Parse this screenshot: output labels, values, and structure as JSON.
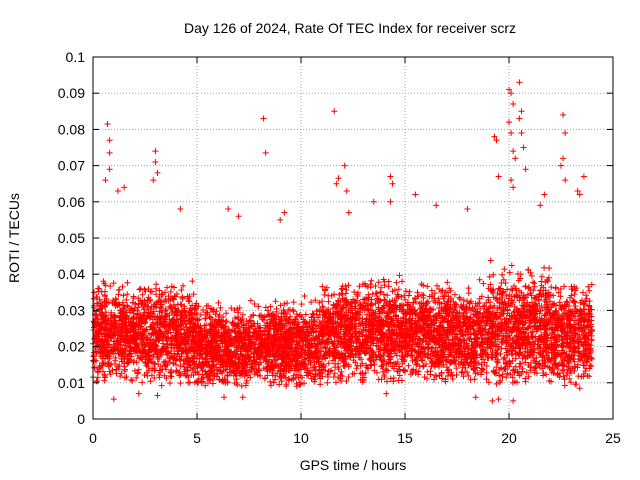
{
  "chart_data": {
    "type": "scatter",
    "title": "Day 126 of 2024, Rate Of TEC Index for receiver scrz",
    "xlabel": "GPS time / hours",
    "ylabel": "ROTI / TECUs",
    "xlim": [
      0,
      25
    ],
    "ylim": [
      0,
      0.1
    ],
    "xticks": [
      0,
      5,
      10,
      15,
      20,
      25
    ],
    "xtick_labels": [
      "0",
      "5",
      "10",
      "15",
      "20",
      "25"
    ],
    "yticks": [
      0,
      0.01,
      0.02,
      0.03,
      0.04,
      0.05,
      0.06,
      0.07,
      0.08,
      0.09,
      0.1
    ],
    "ytick_labels": [
      "0",
      "0.01",
      "0.02",
      "0.03",
      "0.04",
      "0.05",
      "0.06",
      "0.07",
      "0.08",
      "0.09",
      "0.1"
    ],
    "grid": true,
    "marker": "+",
    "marker_color": "#ff0000",
    "series": [
      {
        "name": "ROTI",
        "points": [
          [
            0.7,
            0.0815
          ],
          [
            0.8,
            0.077
          ],
          [
            0.8,
            0.0735
          ],
          [
            0.8,
            0.069
          ],
          [
            0.6,
            0.066
          ],
          [
            1.5,
            0.064
          ],
          [
            1.2,
            0.063
          ],
          [
            3.0,
            0.074
          ],
          [
            3.0,
            0.071
          ],
          [
            3.1,
            0.068
          ],
          [
            2.9,
            0.066
          ],
          [
            4.2,
            0.058
          ],
          [
            6.5,
            0.058
          ],
          [
            7.0,
            0.056
          ],
          [
            8.2,
            0.083
          ],
          [
            8.3,
            0.0735
          ],
          [
            9.2,
            0.057
          ],
          [
            9.0,
            0.055
          ],
          [
            11.6,
            0.085
          ],
          [
            12.1,
            0.07
          ],
          [
            11.8,
            0.0665
          ],
          [
            11.7,
            0.065
          ],
          [
            12.3,
            0.057
          ],
          [
            12.2,
            0.063
          ],
          [
            13.5,
            0.06
          ],
          [
            14.3,
            0.067
          ],
          [
            14.4,
            0.065
          ],
          [
            14.3,
            0.06
          ],
          [
            15.5,
            0.062
          ],
          [
            16.5,
            0.059
          ],
          [
            18.0,
            0.058
          ],
          [
            19.3,
            0.078
          ],
          [
            19.4,
            0.077
          ],
          [
            19.5,
            0.067
          ],
          [
            20.0,
            0.091
          ],
          [
            20.1,
            0.09
          ],
          [
            20.2,
            0.087
          ],
          [
            20.0,
            0.082
          ],
          [
            20.1,
            0.079
          ],
          [
            20.2,
            0.074
          ],
          [
            20.3,
            0.072
          ],
          [
            20.5,
            0.093
          ],
          [
            20.6,
            0.085
          ],
          [
            20.5,
            0.083
          ],
          [
            20.6,
            0.079
          ],
          [
            20.7,
            0.075
          ],
          [
            20.8,
            0.069
          ],
          [
            20.1,
            0.066
          ],
          [
            20.2,
            0.064
          ],
          [
            22.6,
            0.084
          ],
          [
            22.7,
            0.079
          ],
          [
            22.6,
            0.072
          ],
          [
            22.5,
            0.07
          ],
          [
            22.7,
            0.066
          ],
          [
            23.3,
            0.063
          ],
          [
            23.4,
            0.062
          ],
          [
            23.6,
            0.067
          ],
          [
            21.7,
            0.062
          ],
          [
            21.5,
            0.059
          ],
          [
            1.0,
            0.0055
          ],
          [
            2.2,
            0.007
          ],
          [
            3.1,
            0.0065
          ],
          [
            6.3,
            0.006
          ],
          [
            7.2,
            0.006
          ],
          [
            14.1,
            0.007
          ],
          [
            19.2,
            0.005
          ],
          [
            19.5,
            0.0055
          ],
          [
            20.2,
            0.005
          ],
          [
            18.4,
            0.006
          ],
          [
            23.4,
            0.0085
          ]
        ]
      }
    ],
    "density_bands": [
      {
        "x_start": 0,
        "x_end": 2,
        "y_low": 0.01,
        "y_high": 0.045
      },
      {
        "x_start": 2,
        "x_end": 5,
        "y_low": 0.009,
        "y_high": 0.045
      },
      {
        "x_start": 5,
        "x_end": 8,
        "y_low": 0.009,
        "y_high": 0.038
      },
      {
        "x_start": 8,
        "x_end": 11,
        "y_low": 0.009,
        "y_high": 0.04
      },
      {
        "x_start": 11,
        "x_end": 13,
        "y_low": 0.01,
        "y_high": 0.045
      },
      {
        "x_start": 13,
        "x_end": 16,
        "y_low": 0.01,
        "y_high": 0.047
      },
      {
        "x_start": 16,
        "x_end": 19,
        "y_low": 0.01,
        "y_high": 0.044
      },
      {
        "x_start": 19,
        "x_end": 22,
        "y_low": 0.009,
        "y_high": 0.05
      },
      {
        "x_start": 22,
        "x_end": 24,
        "y_low": 0.009,
        "y_high": 0.045
      }
    ]
  }
}
